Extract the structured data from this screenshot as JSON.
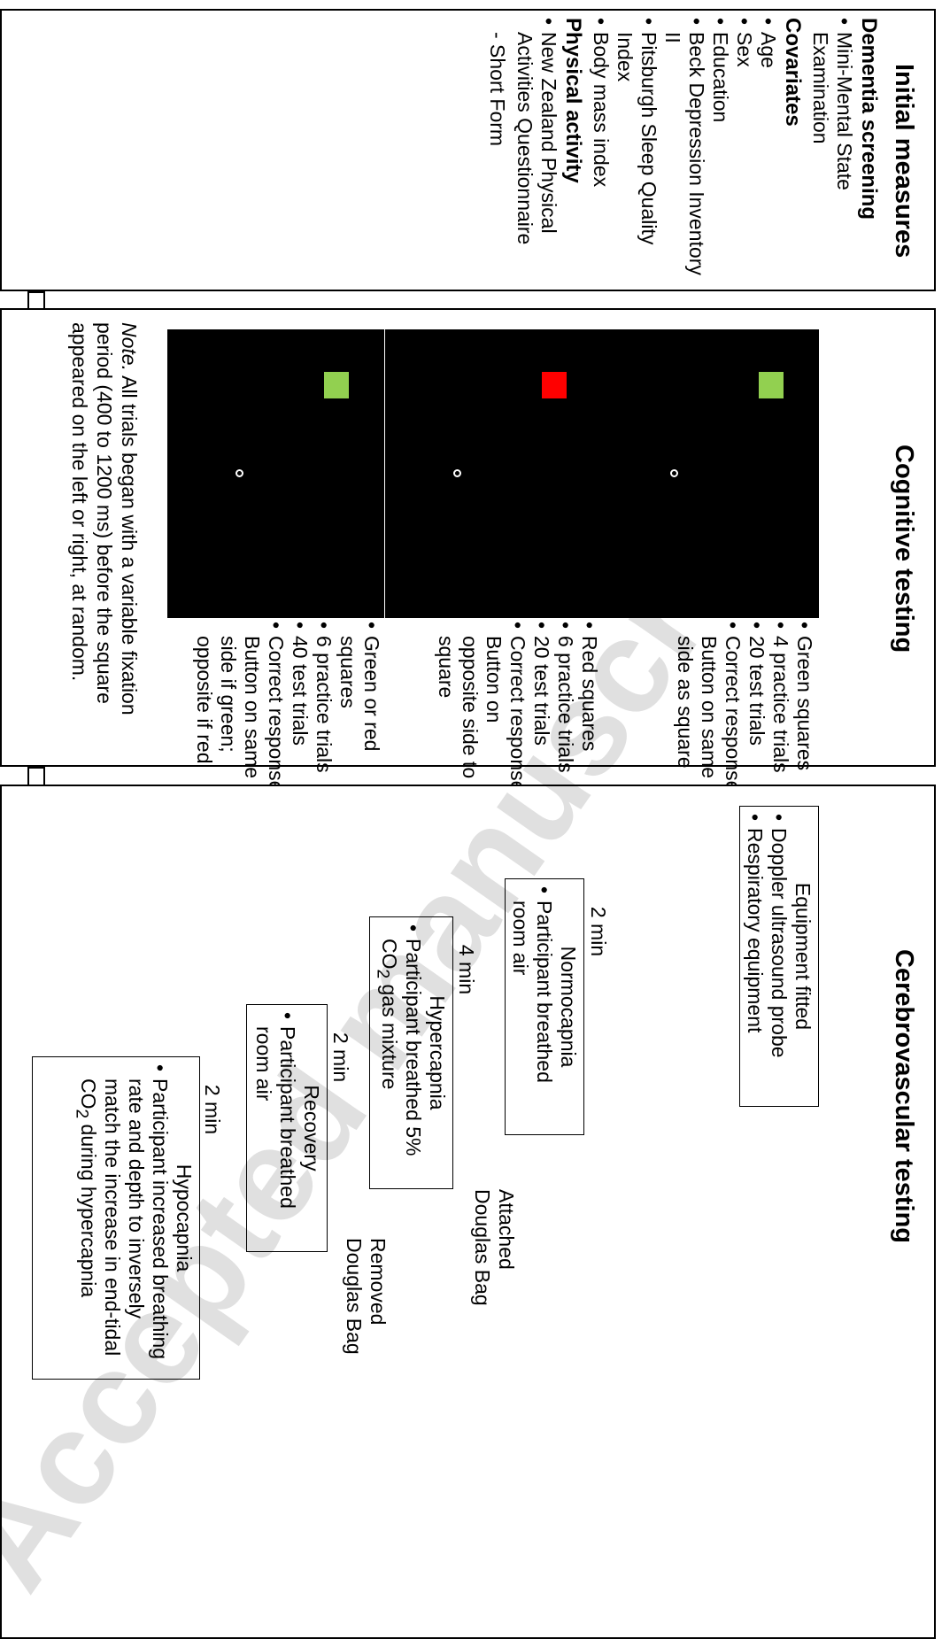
{
  "initial": {
    "title": "Initial measures",
    "dementia": {
      "heading": "Dementia screening",
      "items": [
        "Mini-Mental State Examination"
      ]
    },
    "covariates": {
      "heading": "Covariates",
      "items": [
        "Age",
        "Sex",
        "Education",
        "Beck Depression Inventory II",
        "Pitsburgh Sleep Quality Index",
        "Body mass index"
      ]
    },
    "physical": {
      "heading": "Physical activity",
      "items": [
        "New Zealand Physical Activities Questionnaire"
      ],
      "subitem": "- Short Form"
    }
  },
  "cognitive": {
    "title": "Cognitive testing",
    "stimuli": [
      {
        "square_color": "#92d050",
        "items": [
          "Green squares",
          "4 practice trials",
          "20 test trials",
          "Correct response: Button on same side as square"
        ]
      },
      {
        "square_color": "#ff0000",
        "items": [
          "Red squares",
          "6 practice trials",
          "20 test trials",
          "Correct response: Button on opposite side to square"
        ]
      },
      {
        "square_color": "#92d050",
        "items": [
          "Green or red squares",
          "6 practice trials",
          "40 test trials",
          "Correct response: Button on same side if green; opposite if red"
        ]
      }
    ],
    "note_label": "Note.",
    "note_text": " All trials began with a variable fixation period (400 to 1200 ms) before the square appeared on the left or right, at random."
  },
  "cerebro": {
    "title": "Cerebrovascular testing",
    "equipment": {
      "title": "Equipment fitted",
      "items": [
        "Doppler ultrasound probe",
        "Respiratory equipment"
      ]
    },
    "normocapnia": {
      "duration": "2 min",
      "title": "Normocapnia",
      "items": [
        "Participant breathed room air"
      ]
    },
    "hypercapnia": {
      "duration": "4 min",
      "title": "Hypercapnia",
      "item_pre": "Participant breathed 5% CO",
      "item_sub": "2",
      "item_post": " gas mixture"
    },
    "recovery": {
      "duration": "2 min",
      "title": "Recovery",
      "items": [
        "Participant breathed room air"
      ]
    },
    "hypocapnia": {
      "duration": "2 min",
      "title": "Hypocapnia",
      "item_pre": "Participant increased breathing rate and depth to inversely match the increase in end-tidal CO",
      "item_sub": "2",
      "item_post": " during hypercapnia"
    },
    "attached": "Attached Douglas Bag",
    "removed": "Removed Douglas Bag"
  },
  "watermark": "Accepted manuscript"
}
